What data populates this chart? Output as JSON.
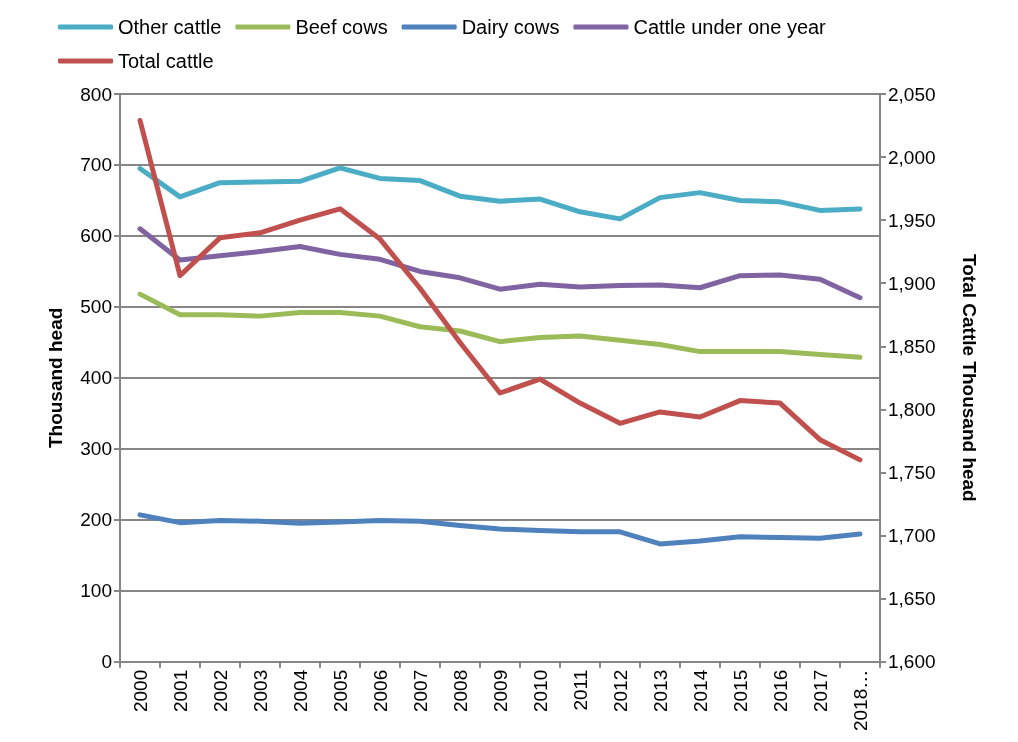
{
  "chart_data": {
    "type": "line",
    "ylabel": "Thousand head",
    "y2label": "Total Cattle Thousand head",
    "categories": [
      "2000",
      "2001",
      "2002",
      "2003",
      "2004",
      "2005",
      "2006",
      "2007",
      "2008",
      "2009",
      "2010",
      "2011",
      "2012",
      "2013",
      "2014",
      "2015",
      "2016",
      "2017",
      "2018…"
    ],
    "series": [
      {
        "name": "Other cattle",
        "color": "#4bacc6",
        "values": [
          695,
          655,
          675,
          676,
          677,
          696,
          681,
          678,
          656,
          649,
          652,
          634,
          624,
          654,
          661,
          650,
          648,
          636,
          638
        ]
      },
      {
        "name": "Beef cows",
        "color": "#9bbb59",
        "values": [
          518,
          489,
          489,
          487,
          492,
          492,
          487,
          472,
          466,
          451,
          457,
          459,
          453,
          447,
          437,
          437,
          437,
          433,
          429
        ]
      },
      {
        "name": "Dairy cows",
        "color": "#4f81bd",
        "values": [
          207,
          196,
          199,
          198,
          195,
          197,
          199,
          198,
          192,
          187,
          185,
          183,
          183,
          166,
          170,
          176,
          175,
          174,
          180
        ]
      },
      {
        "name": "Cattle under one year",
        "color": "#8064a2",
        "values": [
          610,
          566,
          572,
          578,
          585,
          574,
          567,
          550,
          541,
          525,
          532,
          528,
          530,
          531,
          527,
          544,
          545,
          539,
          513
        ]
      },
      {
        "name": "Total cattle",
        "color": "#c0504d",
        "axis": "y2",
        "values": [
          2029,
          1906,
          1936,
          1940,
          1950,
          1959,
          1935,
          1896,
          1853,
          1813,
          1824,
          1805,
          1789,
          1798,
          1794,
          1807,
          1805,
          1776,
          1760
        ]
      }
    ],
    "ylim": [
      0,
      800
    ],
    "yticks": [
      0,
      100,
      200,
      300,
      400,
      500,
      600,
      700,
      800
    ],
    "y2lim": [
      1600,
      2050
    ],
    "y2ticks": [
      {
        "value": 1600,
        "label": "1,600"
      },
      {
        "value": 1650,
        "label": "1,650"
      },
      {
        "value": 1700,
        "label": "1,700"
      },
      {
        "value": 1750,
        "label": "1,750"
      },
      {
        "value": 1800,
        "label": "1,800"
      },
      {
        "value": 1850,
        "label": "1,850"
      },
      {
        "value": 1900,
        "label": "1,900"
      },
      {
        "value": 1950,
        "label": "1,950"
      },
      {
        "value": 2000,
        "label": "2,000"
      },
      {
        "value": 2050,
        "label": "2,050"
      }
    ],
    "grid": "y",
    "legend": "top",
    "marker": "none",
    "line_style": "solid"
  }
}
